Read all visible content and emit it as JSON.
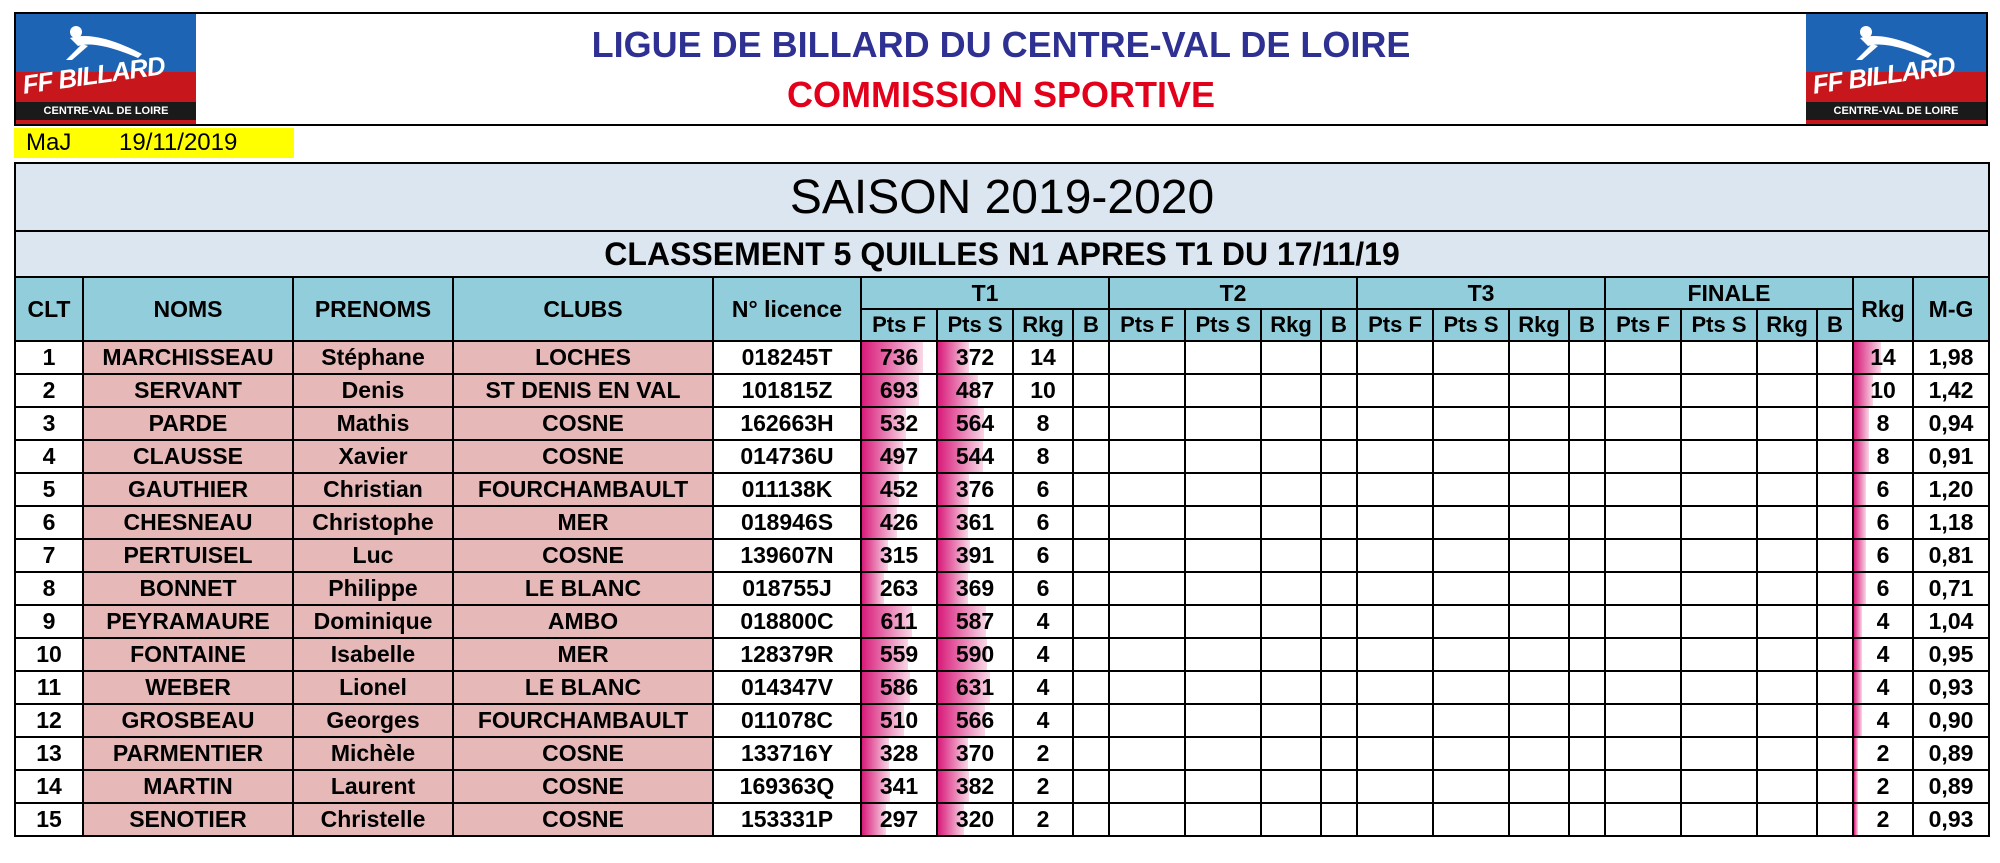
{
  "header": {
    "title": "LIGUE DE BILLARD DU CENTRE-VAL DE LOIRE",
    "subtitle": "COMMISSION SPORTIVE",
    "logo_text": "FF BILLARD",
    "logo_region": "CENTRE-VAL DE LOIRE"
  },
  "update": {
    "label": "MaJ",
    "date": "19/11/2019"
  },
  "season": "SAISON 2019-2020",
  "ranking_title": "CLASSEMENT 5 QUILLES N1 APRES T1 DU 17/11/19",
  "columns": {
    "clt": "CLT",
    "noms": "NOMS",
    "prenoms": "PRENOMS",
    "clubs": "CLUBS",
    "licence": "N° licence",
    "t1": "T1",
    "t2": "T2",
    "t3": "T3",
    "finale": "FINALE",
    "rkg": "Rkg",
    "mg": "M-G",
    "pts_f": "Pts F",
    "pts_s": "Pts S",
    "rkg_sub": "Rkg",
    "b": "B"
  },
  "colors": {
    "accent_title": "#2e3192",
    "accent_red": "#e3001b",
    "header_bg": "#92cddc",
    "name_bg": "#e6b8b7",
    "bar": "#d81b7a"
  },
  "rows": [
    {
      "clt": "1",
      "nom": "MARCHISSEAU",
      "prenom": "Stéphane",
      "club": "LOCHES",
      "licence": "018245T",
      "pts_f": "736",
      "pts_s": "372",
      "rkg_t1": "14",
      "rkg": "14",
      "mg": "1,98"
    },
    {
      "clt": "2",
      "nom": "SERVANT",
      "prenom": "Denis",
      "club": "ST DENIS EN VAL",
      "licence": "101815Z",
      "pts_f": "693",
      "pts_s": "487",
      "rkg_t1": "10",
      "rkg": "10",
      "mg": "1,42"
    },
    {
      "clt": "3",
      "nom": "PARDE",
      "prenom": "Mathis",
      "club": "COSNE",
      "licence": "162663H",
      "pts_f": "532",
      "pts_s": "564",
      "rkg_t1": "8",
      "rkg": "8",
      "mg": "0,94"
    },
    {
      "clt": "4",
      "nom": "CLAUSSE",
      "prenom": "Xavier",
      "club": "COSNE",
      "licence": "014736U",
      "pts_f": "497",
      "pts_s": "544",
      "rkg_t1": "8",
      "rkg": "8",
      "mg": "0,91"
    },
    {
      "clt": "5",
      "nom": "GAUTHIER",
      "prenom": "Christian",
      "club": "FOURCHAMBAULT",
      "licence": "011138K",
      "pts_f": "452",
      "pts_s": "376",
      "rkg_t1": "6",
      "rkg": "6",
      "mg": "1,20"
    },
    {
      "clt": "6",
      "nom": "CHESNEAU",
      "prenom": "Christophe",
      "club": "MER",
      "licence": "018946S",
      "pts_f": "426",
      "pts_s": "361",
      "rkg_t1": "6",
      "rkg": "6",
      "mg": "1,18"
    },
    {
      "clt": "7",
      "nom": "PERTUISEL",
      "prenom": "Luc",
      "club": "COSNE",
      "licence": "139607N",
      "pts_f": "315",
      "pts_s": "391",
      "rkg_t1": "6",
      "rkg": "6",
      "mg": "0,81"
    },
    {
      "clt": "8",
      "nom": "BONNET",
      "prenom": "Philippe",
      "club": "LE BLANC",
      "licence": "018755J",
      "pts_f": "263",
      "pts_s": "369",
      "rkg_t1": "6",
      "rkg": "6",
      "mg": "0,71"
    },
    {
      "clt": "9",
      "nom": "PEYRAMAURE",
      "prenom": "Dominique",
      "club": "AMBO",
      "licence": "018800C",
      "pts_f": "611",
      "pts_s": "587",
      "rkg_t1": "4",
      "rkg": "4",
      "mg": "1,04"
    },
    {
      "clt": "10",
      "nom": "FONTAINE",
      "prenom": "Isabelle",
      "club": "MER",
      "licence": "128379R",
      "pts_f": "559",
      "pts_s": "590",
      "rkg_t1": "4",
      "rkg": "4",
      "mg": "0,95"
    },
    {
      "clt": "11",
      "nom": "WEBER",
      "prenom": "Lionel",
      "club": "LE BLANC",
      "licence": "014347V",
      "pts_f": "586",
      "pts_s": "631",
      "rkg_t1": "4",
      "rkg": "4",
      "mg": "0,93"
    },
    {
      "clt": "12",
      "nom": "GROSBEAU",
      "prenom": "Georges",
      "club": "FOURCHAMBAULT",
      "licence": "011078C",
      "pts_f": "510",
      "pts_s": "566",
      "rkg_t1": "4",
      "rkg": "4",
      "mg": "0,90"
    },
    {
      "clt": "13",
      "nom": "PARMENTIER",
      "prenom": "Michèle",
      "club": "COSNE",
      "licence": "133716Y",
      "pts_f": "328",
      "pts_s": "370",
      "rkg_t1": "2",
      "rkg": "2",
      "mg": "0,89"
    },
    {
      "clt": "14",
      "nom": "MARTIN",
      "prenom": "Laurent",
      "club": "COSNE",
      "licence": "169363Q",
      "pts_f": "341",
      "pts_s": "382",
      "rkg_t1": "2",
      "rkg": "2",
      "mg": "0,89"
    },
    {
      "clt": "15",
      "nom": "SENOTIER",
      "prenom": "Christelle",
      "club": "COSNE",
      "licence": "153331P",
      "pts_f": "297",
      "pts_s": "320",
      "rkg_t1": "2",
      "rkg": "2",
      "mg": "0,93"
    }
  ]
}
